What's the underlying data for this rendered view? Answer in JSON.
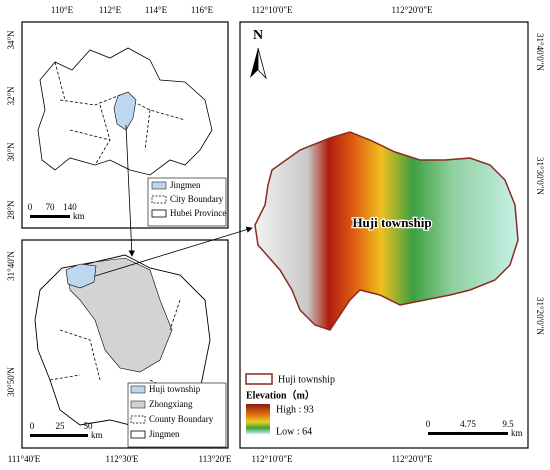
{
  "inset_hubei": {
    "x_ticks": [
      "110°E",
      "112°E",
      "114°E",
      "116°E"
    ],
    "y_ticks": [
      "34°N",
      "32°N",
      "30°N",
      "28°N"
    ],
    "legend": [
      "Jingmen",
      "City Boundary",
      "Hubei Province"
    ],
    "scale": [
      "0",
      "70",
      "140",
      "km"
    ]
  },
  "inset_jingmen": {
    "x_ticks": [
      "111°40'E",
      "112°30'E",
      "113°20'E"
    ],
    "y_ticks": [
      "31°40'N",
      "30°50'N"
    ],
    "legend": [
      "Huji township",
      "Zhongxiang",
      "County Boundary",
      "Jingmen"
    ],
    "scale": [
      "0",
      "25",
      "50",
      "km"
    ]
  },
  "main_map": {
    "north": "N",
    "x_ticks_top": [
      "112°10'0\"E",
      "112°20'0\"E"
    ],
    "x_ticks_bottom": [
      "112°10'0\"E",
      "112°20'0\"E"
    ],
    "y_ticks": [
      "31°40'0\"N",
      "31°30'0\"N",
      "31°20'0\"N"
    ],
    "label": "Huji township",
    "legend": {
      "boundary": "Huji township",
      "elevation_title": "Elevation（m）",
      "high": "High : 93",
      "low": "Low : 64"
    },
    "scale": [
      "0",
      "4.75",
      "9.5",
      "km"
    ]
  }
}
